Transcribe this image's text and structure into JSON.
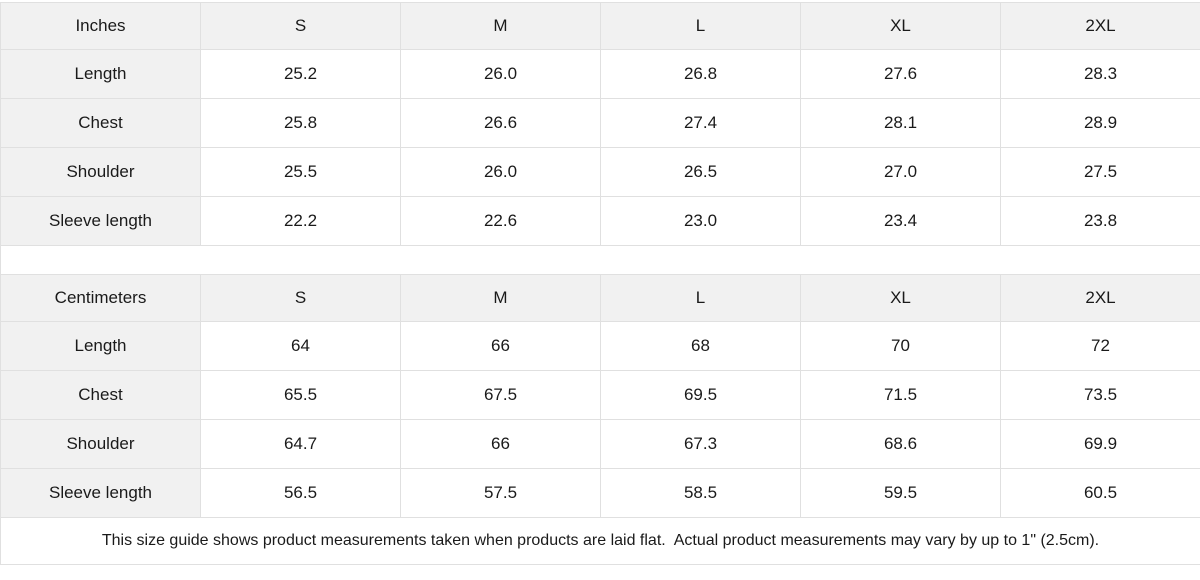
{
  "colors": {
    "header_bg": "#f1f1f1",
    "border": "#e0e0e0",
    "text": "#1a1a1a"
  },
  "tables": [
    {
      "name": "inches",
      "header": [
        "Inches",
        "S",
        "M",
        "L",
        "XL",
        "2XL"
      ],
      "rows": [
        {
          "label": "Length",
          "values": [
            "25.2",
            "26.0",
            "26.8",
            "27.6",
            "28.3"
          ]
        },
        {
          "label": "Chest",
          "values": [
            "25.8",
            "26.6",
            "27.4",
            "28.1",
            "28.9"
          ]
        },
        {
          "label": "Shoulder",
          "values": [
            "25.5",
            "26.0",
            "26.5",
            "27.0",
            "27.5"
          ]
        },
        {
          "label": "Sleeve length",
          "values": [
            "22.2",
            "22.6",
            "23.0",
            "23.4",
            "23.8"
          ]
        }
      ]
    },
    {
      "name": "centimeters",
      "header": [
        "Centimeters",
        "S",
        "M",
        "L",
        "XL",
        "2XL"
      ],
      "rows": [
        {
          "label": "Length",
          "values": [
            "64",
            "66",
            "68",
            "70",
            "72"
          ]
        },
        {
          "label": "Chest",
          "values": [
            "65.5",
            "67.5",
            "69.5",
            "71.5",
            "73.5"
          ]
        },
        {
          "label": "Shoulder",
          "values": [
            "64.7",
            "66",
            "67.3",
            "68.6",
            "69.9"
          ]
        },
        {
          "label": "Sleeve length",
          "values": [
            "56.5",
            "57.5",
            "58.5",
            "59.5",
            "60.5"
          ]
        }
      ]
    }
  ],
  "footer": {
    "note": "This size guide shows product measurements taken when products are laid flat.  Actual product measurements may vary by up to 1\" (2.5cm)."
  }
}
